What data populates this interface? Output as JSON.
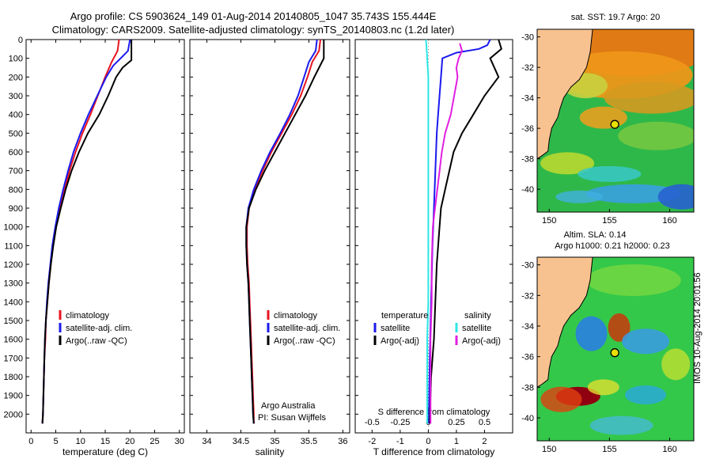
{
  "header": {
    "line1": "Argo profile: CS 5903624_149 01-Aug-2014 20140805_1047 35.743S 155.444E",
    "line2": "Climatology: CARS2009. Satellite-adjusted climatology: synTS_20140803.nc (1.2d later)"
  },
  "footer_stamp": "IMOS 10-Aug-2014 20:01:56",
  "colors": {
    "climatology": "#e8141e",
    "satellite": "#1a1aee",
    "argo": "#000000",
    "cyan": "#2ee6e6",
    "magenta": "#e11ee1",
    "land": "#f8c290"
  },
  "chart_data": [
    {
      "type": "line",
      "panel": "temperature",
      "xlabel": "temperature (deg C)",
      "ylabel": "",
      "xlim": [
        -1,
        31
      ],
      "ylim": [
        2100,
        0
      ],
      "xticks": [
        0,
        5,
        10,
        15,
        20,
        25,
        30
      ],
      "yticks": [
        0,
        100,
        200,
        300,
        400,
        500,
        600,
        700,
        800,
        900,
        1000,
        1100,
        1200,
        1300,
        1400,
        1500,
        1600,
        1700,
        1800,
        1900,
        2000
      ],
      "legend": [
        "climatology",
        "satellite-adj. clim.",
        "Argo(..raw -QC)"
      ],
      "series": [
        {
          "name": "climatology",
          "points": [
            [
              17.8,
              0
            ],
            [
              17.5,
              60
            ],
            [
              16.3,
              120
            ],
            [
              15.0,
              200
            ],
            [
              13.5,
              300
            ],
            [
              12.0,
              400
            ],
            [
              10.4,
              500
            ],
            [
              9.0,
              600
            ],
            [
              7.8,
              700
            ],
            [
              6.8,
              800
            ],
            [
              5.8,
              900
            ],
            [
              5.0,
              1000
            ],
            [
              4.4,
              1100
            ],
            [
              4.0,
              1200
            ],
            [
              3.6,
              1300
            ],
            [
              3.3,
              1400
            ],
            [
              3.0,
              1500
            ],
            [
              2.9,
              1600
            ],
            [
              2.7,
              1700
            ],
            [
              2.6,
              1800
            ],
            [
              2.5,
              1900
            ],
            [
              2.4,
              2000
            ],
            [
              2.3,
              2050
            ]
          ]
        },
        {
          "name": "satellite-adj. clim.",
          "points": [
            [
              20.0,
              0
            ],
            [
              19.6,
              60
            ],
            [
              18.5,
              90
            ],
            [
              16.6,
              140
            ],
            [
              15.2,
              200
            ],
            [
              13.4,
              300
            ],
            [
              11.6,
              400
            ],
            [
              10.0,
              500
            ],
            [
              8.6,
              600
            ],
            [
              7.5,
              700
            ],
            [
              6.5,
              800
            ],
            [
              5.6,
              900
            ],
            [
              4.9,
              1000
            ],
            [
              4.3,
              1100
            ],
            [
              3.9,
              1200
            ],
            [
              3.5,
              1300
            ],
            [
              3.2,
              1400
            ],
            [
              3.0,
              1500
            ],
            [
              2.8,
              1600
            ],
            [
              2.7,
              1700
            ],
            [
              2.6,
              1800
            ],
            [
              2.5,
              1900
            ],
            [
              2.4,
              2000
            ],
            [
              2.3,
              2050
            ]
          ]
        },
        {
          "name": "Argo(..raw -QC)",
          "points": [
            [
              20.3,
              0
            ],
            [
              20.3,
              80
            ],
            [
              20.3,
              110
            ],
            [
              18.5,
              150
            ],
            [
              17.2,
              200
            ],
            [
              15.6,
              300
            ],
            [
              13.8,
              400
            ],
            [
              11.5,
              500
            ],
            [
              9.7,
              600
            ],
            [
              8.2,
              700
            ],
            [
              7.0,
              800
            ],
            [
              6.0,
              900
            ],
            [
              5.1,
              1000
            ],
            [
              4.5,
              1100
            ],
            [
              4.0,
              1200
            ],
            [
              3.6,
              1300
            ],
            [
              3.3,
              1400
            ],
            [
              3.0,
              1500
            ],
            [
              2.8,
              1600
            ],
            [
              2.7,
              1700
            ],
            [
              2.6,
              1800
            ],
            [
              2.5,
              1900
            ],
            [
              2.4,
              2000
            ],
            [
              2.3,
              2050
            ]
          ]
        }
      ]
    },
    {
      "type": "line",
      "panel": "salinity",
      "xlabel": "salinity",
      "ylabel": "",
      "xlim": [
        33.75,
        36.1
      ],
      "ylim": [
        2100,
        0
      ],
      "xticks": [
        34,
        34.5,
        35,
        35.5,
        36
      ],
      "legend": [
        "climatology",
        "satellite-adj. clim.",
        "Argo(..raw -QC)"
      ],
      "annotation": [
        "Argo Australia",
        "PI: Susan Wijffels"
      ],
      "series": [
        {
          "name": "climatology",
          "points": [
            [
              35.67,
              0
            ],
            [
              35.65,
              60
            ],
            [
              35.55,
              120
            ],
            [
              35.48,
              200
            ],
            [
              35.38,
              300
            ],
            [
              35.25,
              400
            ],
            [
              35.1,
              500
            ],
            [
              34.95,
              600
            ],
            [
              34.82,
              700
            ],
            [
              34.7,
              800
            ],
            [
              34.62,
              900
            ],
            [
              34.59,
              1000
            ],
            [
              34.59,
              1100
            ],
            [
              34.6,
              1200
            ],
            [
              34.62,
              1300
            ],
            [
              34.63,
              1400
            ],
            [
              34.64,
              1500
            ],
            [
              34.65,
              1600
            ],
            [
              34.66,
              1700
            ],
            [
              34.67,
              1800
            ],
            [
              34.68,
              1900
            ],
            [
              34.69,
              2000
            ],
            [
              34.69,
              2050
            ]
          ]
        },
        {
          "name": "satellite-adj. clim.",
          "points": [
            [
              35.62,
              0
            ],
            [
              35.6,
              60
            ],
            [
              35.5,
              120
            ],
            [
              35.43,
              200
            ],
            [
              35.34,
              300
            ],
            [
              35.22,
              400
            ],
            [
              35.08,
              500
            ],
            [
              34.93,
              600
            ],
            [
              34.8,
              700
            ],
            [
              34.69,
              800
            ],
            [
              34.61,
              900
            ],
            [
              34.58,
              1000
            ],
            [
              34.58,
              1100
            ],
            [
              34.59,
              1200
            ],
            [
              34.61,
              1300
            ],
            [
              34.62,
              1400
            ],
            [
              34.63,
              1500
            ],
            [
              34.64,
              1600
            ],
            [
              34.65,
              1700
            ],
            [
              34.66,
              1800
            ],
            [
              34.67,
              1900
            ],
            [
              34.68,
              2000
            ],
            [
              34.69,
              2050
            ]
          ]
        },
        {
          "name": "Argo(..raw -QC)",
          "points": [
            [
              35.72,
              0
            ],
            [
              35.72,
              100
            ],
            [
              35.65,
              150
            ],
            [
              35.58,
              200
            ],
            [
              35.45,
              300
            ],
            [
              35.3,
              400
            ],
            [
              35.15,
              500
            ],
            [
              35.0,
              600
            ],
            [
              34.85,
              700
            ],
            [
              34.72,
              800
            ],
            [
              34.62,
              900
            ],
            [
              34.58,
              1000
            ],
            [
              34.58,
              1100
            ],
            [
              34.59,
              1200
            ],
            [
              34.61,
              1300
            ],
            [
              34.62,
              1400
            ],
            [
              34.63,
              1500
            ],
            [
              34.64,
              1600
            ],
            [
              34.65,
              1700
            ],
            [
              34.66,
              1800
            ],
            [
              34.67,
              1900
            ],
            [
              34.68,
              2000
            ],
            [
              34.69,
              2050
            ]
          ]
        }
      ]
    },
    {
      "type": "line",
      "panel": "difference",
      "xlabel": "T difference from climatology",
      "xlabel_top": "S difference from climatology",
      "xlim": [
        -2.6,
        3.0
      ],
      "xticks": [
        -2,
        -1,
        0,
        1,
        2
      ],
      "xticks_s": [
        -0.5,
        -0.25,
        0,
        0.25,
        0.5
      ],
      "legend_groups": [
        {
          "title": "temperature",
          "items": [
            "satellite",
            "Argo(-adj)"
          ]
        },
        {
          "title": "salinity",
          "items": [
            "satellite",
            "Argo(-adj)"
          ]
        }
      ],
      "series": [
        {
          "name": "temperature satellite",
          "points": [
            [
              2.2,
              0
            ],
            [
              2.1,
              30
            ],
            [
              1.8,
              50
            ],
            [
              1.0,
              70
            ],
            [
              0.5,
              100
            ],
            [
              0.45,
              200
            ],
            [
              0.4,
              300
            ],
            [
              0.35,
              400
            ],
            [
              0.3,
              500
            ],
            [
              0.25,
              700
            ],
            [
              0.2,
              900
            ],
            [
              0.15,
              1100
            ],
            [
              0.1,
              1400
            ],
            [
              0.05,
              1700
            ],
            [
              0.02,
              2050
            ]
          ]
        },
        {
          "name": "temperature Argo(-adj)",
          "points": [
            [
              2.5,
              0
            ],
            [
              2.6,
              50
            ],
            [
              2.2,
              100
            ],
            [
              2.5,
              200
            ],
            [
              2.0,
              300
            ],
            [
              1.6,
              400
            ],
            [
              1.2,
              500
            ],
            [
              0.9,
              600
            ],
            [
              0.6,
              800
            ],
            [
              0.45,
              900
            ],
            [
              0.4,
              1000
            ],
            [
              0.3,
              1200
            ],
            [
              0.25,
              1400
            ],
            [
              0.2,
              1600
            ],
            [
              0.1,
              1800
            ],
            [
              0.05,
              2050
            ]
          ]
        },
        {
          "name": "salinity satellite",
          "points": [
            [
              -0.02,
              0
            ],
            [
              -0.01,
              100
            ],
            [
              0.0,
              200
            ],
            [
              0.0,
              300
            ],
            [
              0.0,
              400
            ],
            [
              0.0,
              600
            ],
            [
              0.0,
              800
            ],
            [
              0.0,
              1000
            ],
            [
              0.0,
              1200
            ],
            [
              0.0,
              1400
            ],
            [
              -0.01,
              1600
            ],
            [
              -0.01,
              1800
            ],
            [
              -0.01,
              2050
            ]
          ]
        },
        {
          "name": "salinity Argo(-adj)",
          "points": [
            [
              0.28,
              20
            ],
            [
              0.3,
              60
            ],
            [
              0.27,
              100
            ],
            [
              0.25,
              150
            ],
            [
              0.26,
              200
            ],
            [
              0.23,
              300
            ],
            [
              0.2,
              400
            ],
            [
              0.15,
              500
            ],
            [
              0.12,
              600
            ],
            [
              0.08,
              800
            ],
            [
              0.06,
              900
            ],
            [
              0.04,
              1000
            ],
            [
              0.03,
              1200
            ],
            [
              0.03,
              1400
            ],
            [
              0.02,
              1600
            ],
            [
              0.02,
              1800
            ],
            [
              0.02,
              2050
            ]
          ]
        }
      ]
    },
    {
      "type": "heatmap",
      "panel": "map-sst",
      "title": "sat. SST: 19.7 Argo: 20",
      "xlim": [
        149,
        162
      ],
      "ylim": [
        -41.5,
        -29.5
      ],
      "xticks": [
        150,
        155,
        160
      ],
      "yticks": [
        -30,
        -32,
        -34,
        -36,
        -38,
        -40
      ],
      "float_position": [
        155.444,
        -35.743
      ]
    },
    {
      "type": "heatmap",
      "panel": "map-sla",
      "title": "Altim. SLA: 0.14",
      "subtitle": "Argo h1000: 0.21 h2000: 0.23",
      "xlim": [
        149,
        162
      ],
      "ylim": [
        -41.5,
        -29.5
      ],
      "xticks": [
        150,
        155,
        160
      ],
      "yticks": [
        -30,
        -32,
        -34,
        -36,
        -38,
        -40
      ],
      "float_position": [
        155.444,
        -35.743
      ]
    }
  ]
}
